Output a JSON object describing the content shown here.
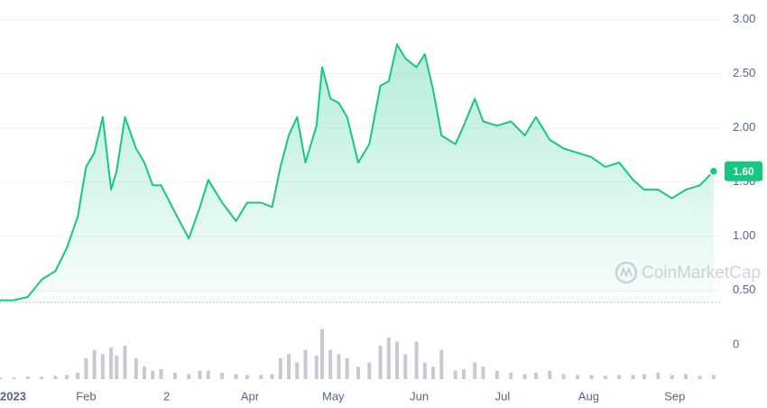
{
  "chart_data": [
    {
      "type": "line",
      "x": [
        0,
        5,
        10,
        15,
        20,
        24,
        28,
        31,
        34,
        37,
        40,
        42,
        45,
        49,
        52,
        55,
        58,
        63,
        68,
        72,
        75,
        80,
        85,
        89,
        94,
        98,
        101,
        104,
        107,
        110,
        114,
        116,
        119,
        122,
        125,
        129,
        133,
        137,
        140,
        143,
        146,
        150,
        153,
        156,
        159,
        164,
        167,
        171,
        174,
        179,
        184,
        189,
        193,
        198,
        203,
        208,
        213,
        218,
        223,
        228,
        232,
        237,
        242,
        247,
        252,
        257
      ],
      "series": [
        {
          "color": "#16c784",
          "values": [
            0.41,
            0.41,
            0.44,
            0.6,
            0.68,
            0.89,
            1.18,
            1.64,
            1.77,
            2.1,
            1.43,
            1.6,
            2.1,
            1.81,
            1.68,
            1.47,
            1.47,
            1.22,
            0.98,
            1.27,
            1.52,
            1.31,
            1.14,
            1.31,
            1.31,
            1.27,
            1.64,
            1.93,
            2.1,
            1.68,
            2.02,
            2.56,
            2.27,
            2.23,
            2.1,
            1.68,
            1.85,
            2.39,
            2.43,
            2.77,
            2.64,
            2.56,
            2.68,
            2.35,
            1.93,
            1.85,
            2.02,
            2.27,
            2.06,
            2.02,
            2.06,
            1.93,
            2.1,
            1.89,
            1.81,
            1.77,
            1.73,
            1.64,
            1.68,
            1.52,
            1.43,
            1.43,
            1.35,
            1.43,
            1.47,
            1.6
          ]
        }
      ],
      "xlim": [
        0,
        259
      ],
      "xticks": [
        {
          "value": 0,
          "label": "2023"
        },
        {
          "value": 31,
          "label": "Feb"
        },
        {
          "value": 60,
          "label": "2"
        },
        {
          "value": 90,
          "label": "Apr"
        },
        {
          "value": 120,
          "label": "May"
        },
        {
          "value": 151,
          "label": "Jun"
        },
        {
          "value": 181,
          "label": "Jul"
        },
        {
          "value": 212,
          "label": "Aug"
        },
        {
          "value": 243,
          "label": "Sep"
        }
      ],
      "ylim": [
        0.39,
        3.18
      ],
      "yticks": [
        {
          "value": 0.5,
          "label": "0.50"
        },
        {
          "value": 1,
          "label": "1.00"
        },
        {
          "value": 1.5,
          "label": "1.50"
        },
        {
          "value": 2,
          "label": "2.00"
        },
        {
          "value": 2.5,
          "label": "2.50"
        },
        {
          "value": 3,
          "label": "3.00"
        }
      ],
      "grid": true,
      "current_price": {
        "value": 1.6,
        "label": "1.60"
      },
      "watermark": "CoinMarketCap"
    },
    {
      "type": "bar",
      "x": [
        0,
        5,
        10,
        15,
        20,
        24,
        28,
        31,
        34,
        37,
        40,
        42,
        45,
        49,
        52,
        55,
        58,
        63,
        68,
        72,
        75,
        80,
        85,
        89,
        94,
        98,
        101,
        104,
        107,
        110,
        114,
        116,
        119,
        122,
        125,
        129,
        133,
        137,
        140,
        143,
        146,
        150,
        153,
        156,
        159,
        164,
        167,
        171,
        174,
        179,
        184,
        189,
        193,
        198,
        203,
        208,
        213,
        218,
        223,
        228,
        232,
        237,
        242,
        247,
        252,
        257
      ],
      "values": [
        2,
        2,
        3,
        3,
        4,
        5,
        8,
        25,
        35,
        30,
        38,
        28,
        40,
        25,
        15,
        10,
        12,
        8,
        6,
        10,
        10,
        8,
        6,
        5,
        5,
        6,
        25,
        30,
        20,
        35,
        28,
        60,
        35,
        30,
        25,
        15,
        20,
        40,
        50,
        45,
        30,
        45,
        20,
        15,
        35,
        10,
        12,
        20,
        15,
        10,
        8,
        6,
        8,
        10,
        6,
        5,
        5,
        4,
        5,
        5,
        6,
        8,
        5,
        6,
        4,
        5
      ],
      "color": "#c5cad3",
      "xlim": [
        0,
        259
      ],
      "ylim": [
        0,
        65
      ],
      "yticks": [
        0
      ]
    }
  ]
}
